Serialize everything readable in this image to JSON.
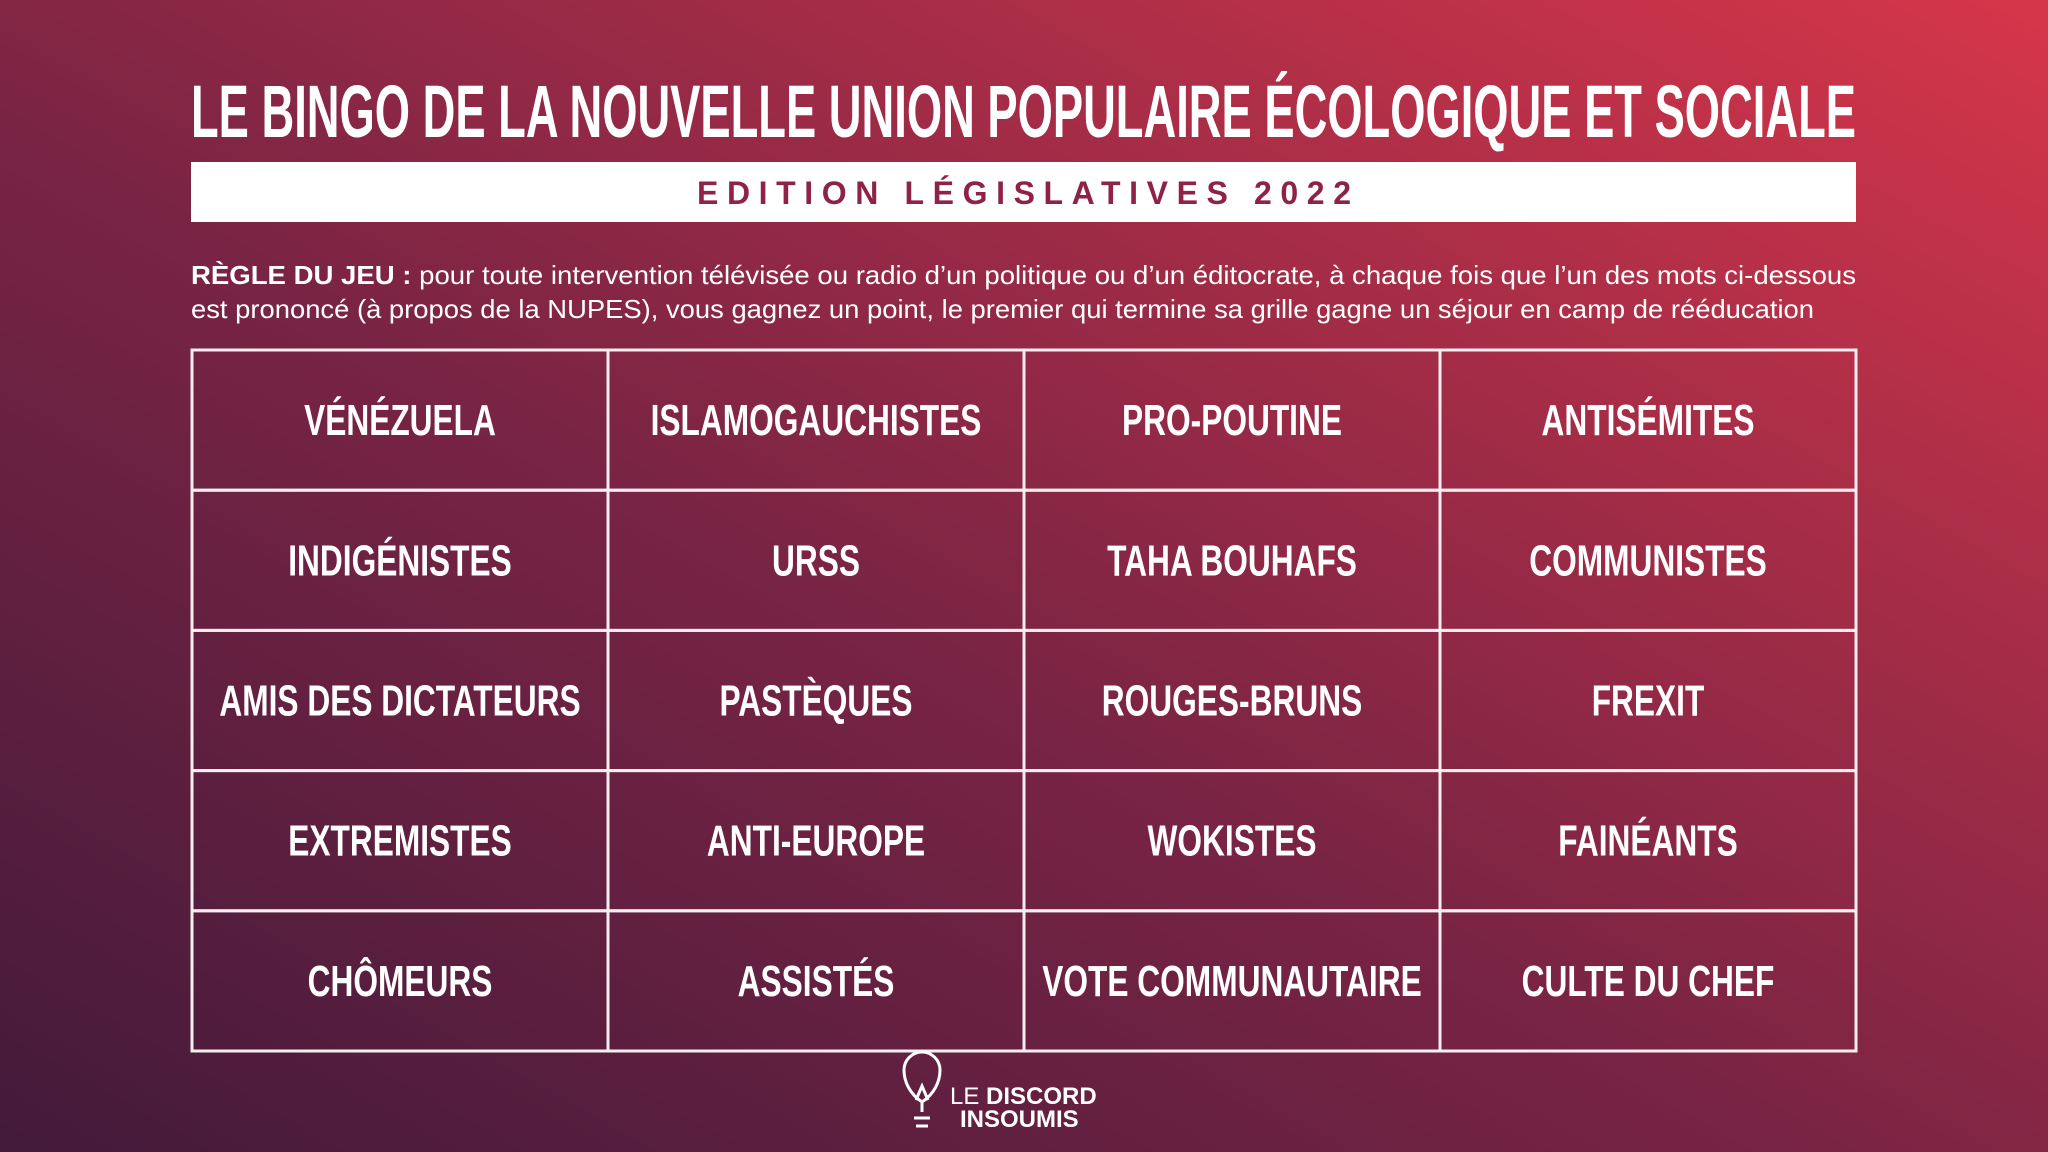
{
  "header": {
    "title": "LE BINGO DE LA NOUVELLE UNION POPULAIRE ÉCOLOGIQUE ET SOCIALE",
    "subtitle": "EDITION LÉGISLATIVES 2022"
  },
  "rules": {
    "label": "RÈGLE DU JEU :",
    "line1": "pour toute intervention télévisée ou radio d’un politique ou d’un éditocrate, à chaque fois que l’un des mots ci-dessous",
    "line2": "est prononcé (à propos de la NUPES), vous gagnez un point, le premier qui termine sa grille gagne un séjour en camp de rééducation"
  },
  "grid": {
    "rows": [
      [
        "VÉNÉZUELA",
        "ISLAMOGAUCHISTES",
        "PRO-POUTINE",
        "ANTISÉMITES"
      ],
      [
        "INDIGÉNISTES",
        "URSS",
        "TAHA BOUHAFS",
        "COMMUNISTES"
      ],
      [
        "AMIS DES DICTATEURS",
        "PASTÈQUES",
        "ROUGES-BRUNS",
        "FREXIT"
      ],
      [
        "EXTREMISTES",
        "ANTI-EUROPE",
        "WOKISTES",
        "FAINÉANTS"
      ],
      [
        "CHÔMEURS",
        "ASSISTÉS",
        "VOTE COMMUNAUTAIRE",
        "CULTE DU CHEF"
      ]
    ]
  },
  "footer": {
    "logo_line1": "LE",
    "logo_line1_bold": "DISCORD",
    "logo_line2": "INSOUMIS"
  }
}
